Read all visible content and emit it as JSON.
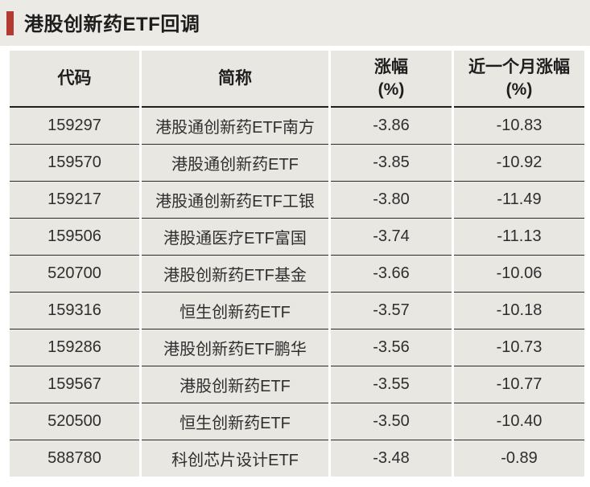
{
  "page": {
    "background": "#ffffff"
  },
  "header": {
    "title": "港股创新药ETF回调",
    "accent_color": "#b23a31",
    "banner_bg": "#eceae5"
  },
  "chart_data": {
    "type": "table",
    "title": "港股创新药ETF回调",
    "columns": [
      "代码",
      "简称",
      "涨幅\n(%)",
      "近一个月涨幅\n(%)"
    ],
    "rows": [
      [
        "159297",
        "港股通创新药ETF南方",
        "-3.86",
        "-10.83"
      ],
      [
        "159570",
        "港股通创新药ETF",
        "-3.85",
        "-10.92"
      ],
      [
        "159217",
        "港股通创新药ETF工银",
        "-3.80",
        "-11.49"
      ],
      [
        "159506",
        "港股通医疗ETF富国",
        "-3.74",
        "-11.13"
      ],
      [
        "520700",
        "港股创新药ETF基金",
        "-3.66",
        "-10.06"
      ],
      [
        "159316",
        "恒生创新药ETF",
        "-3.57",
        "-10.18"
      ],
      [
        "159286",
        "港股创新药ETF鹏华",
        "-3.56",
        "-10.73"
      ],
      [
        "159567",
        "港股创新药ETF",
        "-3.55",
        "-10.77"
      ],
      [
        "520500",
        "恒生创新药ETF",
        "-3.50",
        "-10.40"
      ],
      [
        "588780",
        "科创芯片设计ETF",
        "-3.48",
        "-0.89"
      ]
    ],
    "units": "%",
    "layout": {
      "grid": "horizontal-row-separators",
      "cell_bg": "#e9e7e2",
      "separator_color": "#2a2a2a",
      "text_color": "#2e2e2e"
    }
  }
}
